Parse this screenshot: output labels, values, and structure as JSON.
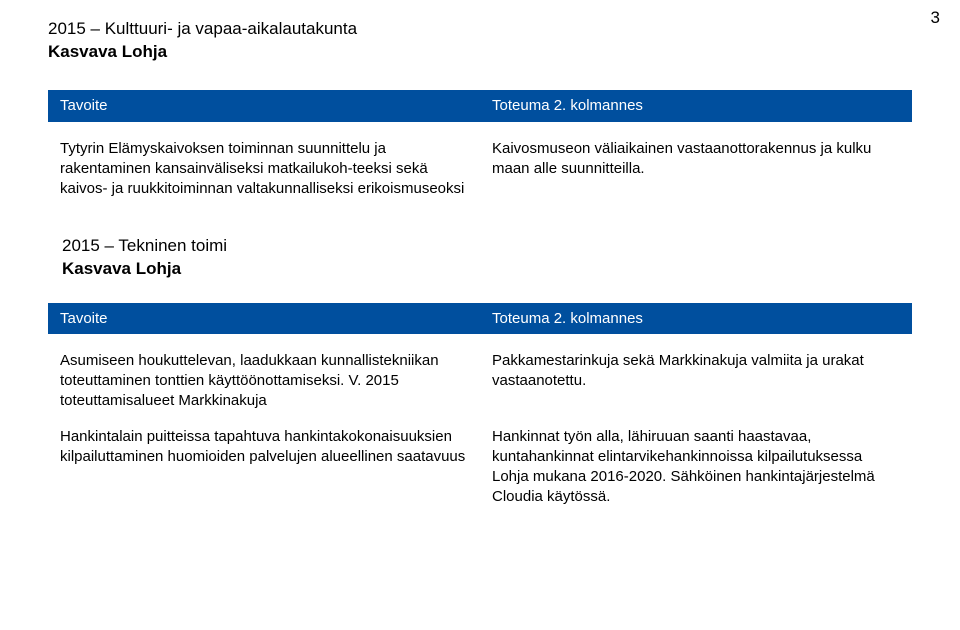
{
  "page_number": "3",
  "colors": {
    "header_bg": "#004f9e",
    "header_text": "#ffffff",
    "body_text": "#000000",
    "page_bg": "#ffffff"
  },
  "section1": {
    "title_line1": "2015 – Kulttuuri- ja vapaa-aikalautakunta",
    "title_line2": "Kasvava Lohja",
    "table": {
      "head_left": "Tavoite",
      "head_right": "Toteuma 2. kolmannes",
      "rows": [
        {
          "left": "Tytyrin Elämyskaivoksen toiminnan suunnittelu ja rakentaminen kansainväliseksi matkailukoh-teeksi sekä kaivos- ja ruukkitoiminnan valtakunnalliseksi erikoismuseoksi",
          "right": "Kaivosmuseon väliaikainen vastaanottorakennus ja kulku maan alle suunnitteilla."
        }
      ]
    }
  },
  "section2": {
    "title_line1": "2015 – Tekninen toimi",
    "title_line2": "Kasvava Lohja",
    "table": {
      "head_left": "Tavoite",
      "head_right": "Toteuma 2. kolmannes",
      "rows": [
        {
          "left": "Asumiseen houkuttelevan, laadukkaan kunnallistekniikan toteuttaminen tonttien käyttöönottamiseksi. V. 2015 toteuttamisalueet Markkinakuja",
          "right": "Pakkamestarinkuja sekä Markkinakuja valmiita ja urakat vastaanotettu."
        },
        {
          "left": "Hankintalain puitteissa tapahtuva hankintakokonaisuuksien kilpailuttaminen huomioiden palvelujen alueellinen saatavuus",
          "right": "Hankinnat työn alla, lähiruuan saanti haastavaa, kuntahankinnat elintarvikehankinnoissa kilpailutuksessa Lohja mukana 2016-2020. Sähköinen hankintajärjestelmä Cloudia käytössä."
        }
      ]
    }
  }
}
